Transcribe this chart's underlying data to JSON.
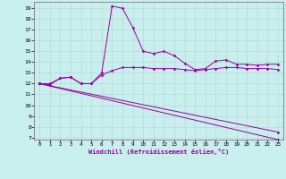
{
  "xlabel": "Windchill (Refroidissement éolien,°C)",
  "bg_color": "#c8eeed",
  "grid_color": "#aadddd",
  "line_color": "#990099",
  "ylim": [
    6.8,
    19.6
  ],
  "xlim": [
    -0.5,
    23.5
  ],
  "yticks": [
    7,
    8,
    9,
    10,
    11,
    12,
    13,
    14,
    15,
    16,
    17,
    18,
    19
  ],
  "xticks": [
    0,
    1,
    2,
    3,
    4,
    5,
    6,
    7,
    8,
    9,
    10,
    11,
    12,
    13,
    14,
    15,
    16,
    17,
    18,
    19,
    20,
    21,
    22,
    23
  ],
  "series": [
    {
      "x": [
        0,
        1,
        2,
        3,
        4,
        5,
        6,
        7,
        8,
        9,
        10,
        11,
        12,
        13,
        14,
        15,
        16,
        17,
        18,
        19,
        20,
        21,
        22,
        23
      ],
      "y": [
        12.0,
        11.9,
        12.5,
        12.6,
        12.0,
        12.0,
        13.0,
        19.2,
        19.0,
        17.2,
        15.0,
        14.8,
        15.0,
        14.6,
        13.9,
        13.3,
        13.4,
        14.1,
        14.2,
        13.8,
        13.8,
        13.7,
        13.8,
        13.8
      ]
    },
    {
      "x": [
        0,
        1,
        2,
        3,
        4,
        5,
        6,
        7,
        8,
        9,
        10,
        11,
        12,
        13,
        14,
        15,
        16,
        17,
        18,
        19,
        20,
        21,
        22,
        23
      ],
      "y": [
        12.0,
        12.0,
        12.5,
        12.6,
        12.0,
        12.0,
        12.8,
        13.2,
        13.5,
        13.5,
        13.5,
        13.4,
        13.4,
        13.4,
        13.3,
        13.2,
        13.3,
        13.4,
        13.5,
        13.5,
        13.4,
        13.4,
        13.4,
        13.3
      ]
    },
    {
      "x": [
        0,
        23
      ],
      "y": [
        12.0,
        6.8
      ]
    },
    {
      "x": [
        0,
        23
      ],
      "y": [
        12.0,
        7.5
      ]
    }
  ]
}
